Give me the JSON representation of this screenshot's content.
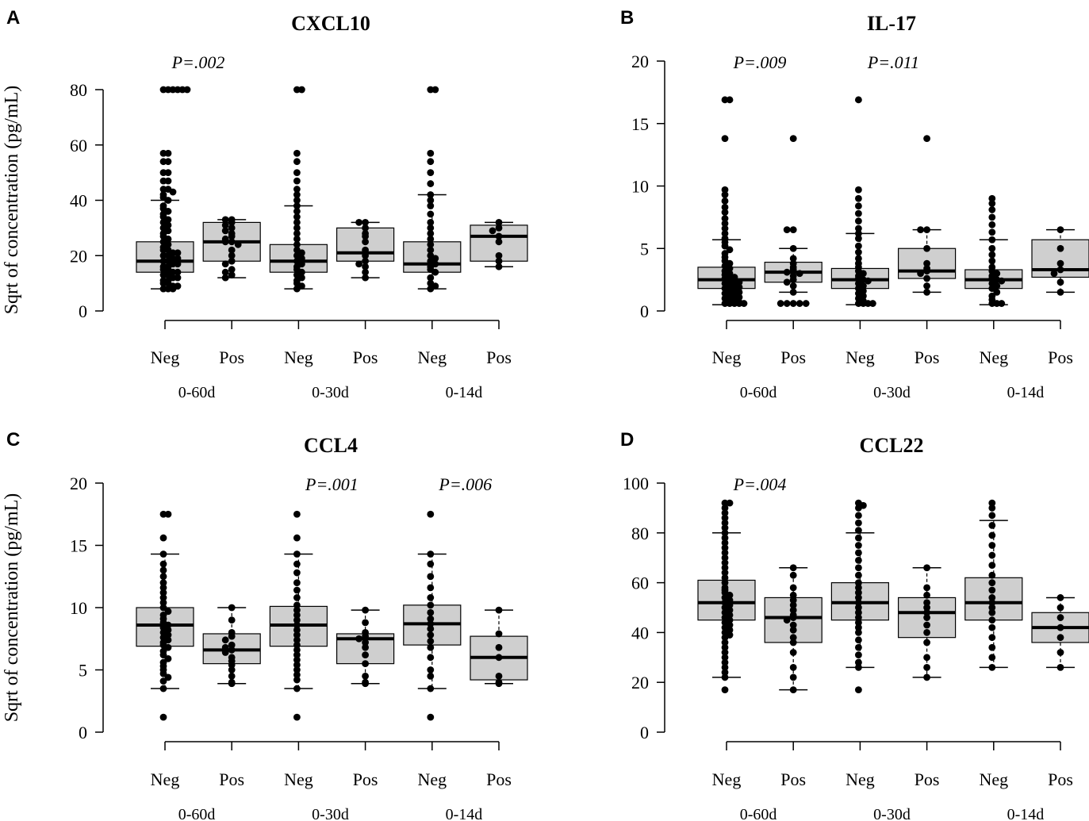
{
  "y_axis_label": "Sqrt of concentration (pg/mL)",
  "colors": {
    "box_fill": "#cfcfcf",
    "ink": "#000000",
    "background": "#ffffff"
  },
  "chart_data": [
    {
      "panel": "A",
      "type": "box",
      "title": "CXCL10",
      "ylabel": "Sqrt of concentration (pg/mL)",
      "ylim": [
        0,
        80
      ],
      "yticks": [
        0,
        20,
        40,
        60,
        80
      ],
      "group_labels": [
        "0-60d",
        "0-30d",
        "0-14d"
      ],
      "categories": [
        "Neg",
        "Pos",
        "Neg",
        "Pos",
        "Neg",
        "Pos"
      ],
      "pvalues": [
        {
          "label": "P=.002",
          "group": 0
        }
      ],
      "boxes": [
        {
          "group": "0-60d",
          "status": "Neg",
          "whisker_low": 8,
          "q1": 14,
          "median": 18,
          "q3": 25,
          "whisker_high": 40,
          "points": [
            80,
            80,
            80,
            80,
            80,
            80,
            57,
            57,
            54,
            54,
            50,
            50,
            47,
            47,
            44,
            44,
            43,
            42,
            41,
            40,
            38,
            37,
            36,
            35,
            34,
            33,
            32,
            31,
            30,
            29,
            28,
            27,
            26,
            25,
            24,
            23,
            22,
            22,
            21,
            21,
            20,
            20,
            19,
            19,
            18,
            18,
            17,
            17,
            16,
            16,
            15,
            15,
            14,
            14,
            13,
            13,
            12,
            12,
            11,
            11,
            10,
            10,
            9,
            9,
            8,
            8,
            8
          ]
        },
        {
          "group": "0-60d",
          "status": "Pos",
          "whisker_low": 12,
          "q1": 18,
          "median": 25,
          "q3": 32,
          "whisker_high": 33,
          "points": [
            33,
            33,
            32,
            31,
            30,
            29,
            28,
            27,
            26,
            25,
            25,
            24,
            22,
            20,
            18,
            17,
            15,
            14,
            13,
            12
          ]
        },
        {
          "group": "0-30d",
          "status": "Neg",
          "whisker_low": 8,
          "q1": 14,
          "median": 18,
          "q3": 24,
          "whisker_high": 38,
          "points": [
            80,
            80,
            57,
            54,
            50,
            47,
            44,
            42,
            40,
            38,
            36,
            34,
            32,
            30,
            28,
            26,
            24,
            22,
            21,
            20,
            19,
            18,
            17,
            16,
            15,
            14,
            13,
            12,
            11,
            10,
            9,
            8
          ]
        },
        {
          "group": "0-30d",
          "status": "Pos",
          "whisker_low": 12,
          "q1": 18,
          "median": 21,
          "q3": 30,
          "whisker_high": 32,
          "points": [
            32,
            32,
            30,
            28,
            27,
            25,
            22,
            20,
            18,
            17,
            16,
            14,
            12
          ]
        },
        {
          "group": "0-14d",
          "status": "Neg",
          "whisker_low": 8,
          "q1": 14,
          "median": 17,
          "q3": 25,
          "whisker_high": 42,
          "points": [
            80,
            80,
            57,
            54,
            50,
            46,
            42,
            40,
            38,
            35,
            32,
            30,
            28,
            26,
            24,
            22,
            20,
            19,
            18,
            17,
            16,
            15,
            14,
            12,
            10,
            9,
            8
          ]
        },
        {
          "group": "0-14d",
          "status": "Pos",
          "whisker_low": 16,
          "q1": 18,
          "median": 27,
          "q3": 31,
          "whisker_high": 32,
          "points": [
            32,
            30,
            29,
            27,
            25,
            20,
            18,
            16
          ]
        }
      ]
    },
    {
      "panel": "B",
      "type": "box",
      "title": "IL-17",
      "ylabel": "",
      "ylim": [
        0,
        20
      ],
      "yticks": [
        0,
        5,
        10,
        15,
        20
      ],
      "group_labels": [
        "0-60d",
        "0-30d",
        "0-14d"
      ],
      "categories": [
        "Neg",
        "Pos",
        "Neg",
        "Pos",
        "Neg",
        "Pos"
      ],
      "pvalues": [
        {
          "label": "P=.009",
          "group": 0
        },
        {
          "label": "P=.011",
          "group": 1
        }
      ],
      "boxes": [
        {
          "group": "0-60d",
          "status": "Neg",
          "whisker_low": 0.5,
          "q1": 1.8,
          "median": 2.5,
          "q3": 3.5,
          "whisker_high": 5.7,
          "points": [
            16.9,
            16.9,
            13.8,
            9.7,
            9.3,
            8.8,
            8.3,
            7.9,
            7.4,
            7.0,
            6.6,
            6.2,
            5.8,
            5.5,
            5.2,
            4.9,
            4.6,
            4.3,
            4.0,
            3.8,
            3.6,
            3.4,
            3.2,
            3.0,
            2.9,
            2.8,
            2.7,
            2.6,
            2.5,
            2.4,
            2.3,
            2.2,
            2.1,
            2.0,
            1.9,
            1.8,
            1.7,
            1.6,
            1.5,
            1.4,
            1.3,
            1.2,
            1.1,
            1.0,
            0.9,
            0.8,
            0.7,
            0.6,
            0.6,
            0.6,
            0.6,
            0.6
          ]
        },
        {
          "group": "0-60d",
          "status": "Pos",
          "whisker_low": 1.5,
          "q1": 2.3,
          "median": 3.1,
          "q3": 3.9,
          "whisker_high": 5.0,
          "points": [
            13.8,
            6.5,
            6.5,
            5.0,
            4.2,
            3.8,
            3.5,
            3.3,
            3.1,
            3.0,
            2.8,
            2.5,
            2.3,
            2.0,
            1.5,
            0.6,
            0.6,
            0.6,
            0.6,
            0.6
          ]
        },
        {
          "group": "0-30d",
          "status": "Neg",
          "whisker_low": 0.5,
          "q1": 1.8,
          "median": 2.5,
          "q3": 3.4,
          "whisker_high": 6.2,
          "points": [
            16.9,
            9.7,
            9.0,
            8.4,
            7.8,
            7.2,
            6.6,
            6.2,
            5.8,
            5.2,
            4.7,
            4.2,
            3.8,
            3.5,
            3.2,
            3.0,
            2.8,
            2.6,
            2.5,
            2.4,
            2.2,
            2.0,
            1.8,
            1.6,
            1.4,
            1.2,
            1.0,
            0.8,
            0.6,
            0.6,
            0.6,
            0.6
          ]
        },
        {
          "group": "0-30d",
          "status": "Pos",
          "whisker_low": 1.5,
          "q1": 2.6,
          "median": 3.2,
          "q3": 5.0,
          "whisker_high": 6.5,
          "points": [
            13.8,
            6.5,
            6.5,
            5.0,
            3.8,
            3.4,
            3.2,
            3.0,
            2.6,
            2.0,
            1.5
          ]
        },
        {
          "group": "0-14d",
          "status": "Neg",
          "whisker_low": 0.5,
          "q1": 1.8,
          "median": 2.5,
          "q3": 3.3,
          "whisker_high": 5.7,
          "points": [
            9.0,
            8.6,
            8.1,
            7.5,
            6.9,
            6.3,
            5.7,
            5.0,
            4.5,
            4.0,
            3.5,
            3.2,
            3.0,
            2.8,
            2.6,
            2.5,
            2.4,
            2.2,
            2.0,
            1.8,
            1.5,
            1.2,
            0.9,
            0.6,
            0.6,
            0.6
          ]
        },
        {
          "group": "0-14d",
          "status": "Pos",
          "whisker_low": 1.5,
          "q1": 2.7,
          "median": 3.3,
          "q3": 5.7,
          "whisker_high": 6.5,
          "points": [
            6.5,
            5.0,
            3.8,
            3.3,
            3.0,
            2.3,
            1.5
          ]
        }
      ]
    },
    {
      "panel": "C",
      "type": "box",
      "title": "CCL4",
      "ylabel": "Sqrt of concentration (pg/mL)",
      "ylim": [
        0,
        20
      ],
      "yticks": [
        0,
        5,
        10,
        15,
        20
      ],
      "group_labels": [
        "0-60d",
        "0-30d",
        "0-14d"
      ],
      "categories": [
        "Neg",
        "Pos",
        "Neg",
        "Pos",
        "Neg",
        "Pos"
      ],
      "pvalues": [
        {
          "label": "P=.001",
          "group": 1
        },
        {
          "label": "P=.006",
          "group": 2
        }
      ],
      "boxes": [
        {
          "group": "0-60d",
          "status": "Neg",
          "whisker_low": 3.5,
          "q1": 6.9,
          "median": 8.6,
          "q3": 10.0,
          "whisker_high": 14.3,
          "points": [
            17.5,
            17.5,
            15.6,
            14.3,
            13.5,
            13.0,
            12.5,
            12.0,
            11.6,
            11.2,
            10.8,
            10.4,
            10.0,
            9.7,
            9.4,
            9.1,
            8.8,
            8.6,
            8.4,
            8.2,
            8.0,
            7.8,
            7.6,
            7.4,
            7.2,
            7.0,
            6.8,
            6.5,
            6.2,
            5.9,
            5.6,
            5.3,
            5.0,
            4.7,
            4.4,
            4.1,
            3.5,
            1.2
          ]
        },
        {
          "group": "0-60d",
          "status": "Pos",
          "whisker_low": 3.9,
          "q1": 5.5,
          "median": 6.6,
          "q3": 7.9,
          "whisker_high": 10.0,
          "points": [
            10.0,
            9.0,
            8.0,
            7.7,
            7.4,
            7.0,
            6.8,
            6.6,
            6.4,
            6.0,
            5.7,
            5.4,
            5.0,
            4.5,
            4.0,
            3.9
          ]
        },
        {
          "group": "0-30d",
          "status": "Neg",
          "whisker_low": 3.5,
          "q1": 6.9,
          "median": 8.6,
          "q3": 10.1,
          "whisker_high": 14.3,
          "points": [
            17.5,
            15.6,
            14.3,
            13.5,
            12.8,
            12.0,
            11.4,
            10.8,
            10.2,
            9.8,
            9.4,
            9.0,
            8.6,
            8.2,
            7.8,
            7.4,
            7.0,
            6.6,
            6.2,
            5.8,
            5.4,
            5.0,
            4.6,
            4.2,
            3.5,
            1.2
          ]
        },
        {
          "group": "0-30d",
          "status": "Pos",
          "whisker_low": 3.9,
          "q1": 5.5,
          "median": 7.5,
          "q3": 7.9,
          "whisker_high": 9.8,
          "points": [
            9.8,
            8.8,
            8.0,
            7.7,
            7.5,
            7.2,
            6.8,
            6.2,
            5.5,
            4.5,
            4.0,
            3.9
          ]
        },
        {
          "group": "0-14d",
          "status": "Neg",
          "whisker_low": 3.5,
          "q1": 7.0,
          "median": 8.7,
          "q3": 10.2,
          "whisker_high": 14.3,
          "points": [
            17.5,
            14.3,
            13.5,
            12.5,
            11.6,
            10.8,
            10.2,
            9.6,
            9.1,
            8.7,
            8.3,
            7.8,
            7.3,
            6.8,
            6.0,
            5.0,
            4.5,
            3.5,
            1.2
          ]
        },
        {
          "group": "0-14d",
          "status": "Pos",
          "whisker_low": 3.9,
          "q1": 4.2,
          "median": 6.0,
          "q3": 7.7,
          "whisker_high": 9.8,
          "points": [
            9.8,
            7.9,
            6.8,
            6.0,
            4.5,
            4.0,
            3.9
          ]
        }
      ]
    },
    {
      "panel": "D",
      "type": "box",
      "title": "CCL22",
      "ylabel": "",
      "ylim": [
        0,
        100
      ],
      "yticks": [
        0,
        20,
        40,
        60,
        80,
        100
      ],
      "group_labels": [
        "0-60d",
        "0-30d",
        "0-14d"
      ],
      "categories": [
        "Neg",
        "Pos",
        "Neg",
        "Pos",
        "Neg",
        "Pos"
      ],
      "pvalues": [
        {
          "label": "P=.004",
          "group": 0
        }
      ],
      "boxes": [
        {
          "group": "0-60d",
          "status": "Neg",
          "whisker_low": 22,
          "q1": 45,
          "median": 52,
          "q3": 61,
          "whisker_high": 80,
          "points": [
            92,
            92,
            90,
            88,
            86,
            84,
            82,
            80,
            78,
            76,
            74,
            72,
            70,
            68,
            66,
            64,
            62,
            60,
            58,
            57,
            56,
            55,
            54,
            53,
            52,
            51,
            50,
            49,
            48,
            47,
            46,
            45,
            44,
            43,
            42,
            41,
            40,
            39,
            38,
            36,
            34,
            32,
            30,
            28,
            26,
            24,
            22,
            17
          ]
        },
        {
          "group": "0-60d",
          "status": "Pos",
          "whisker_low": 17,
          "q1": 36,
          "median": 46,
          "q3": 54,
          "whisker_high": 66,
          "points": [
            66,
            63,
            58,
            55,
            53,
            51,
            49,
            47,
            46,
            45,
            43,
            41,
            38,
            36,
            32,
            26,
            22,
            17
          ]
        },
        {
          "group": "0-30d",
          "status": "Neg",
          "whisker_low": 26,
          "q1": 45,
          "median": 52,
          "q3": 60,
          "whisker_high": 80,
          "points": [
            92,
            91,
            90,
            87,
            84,
            81,
            78,
            75,
            72,
            69,
            66,
            63,
            60,
            58,
            56,
            54,
            52,
            50,
            48,
            46,
            44,
            42,
            40,
            37,
            34,
            31,
            28,
            26,
            17
          ]
        },
        {
          "group": "0-30d",
          "status": "Pos",
          "whisker_low": 22,
          "q1": 38,
          "median": 48,
          "q3": 54,
          "whisker_high": 66,
          "points": [
            66,
            58,
            55,
            52,
            50,
            48,
            46,
            43,
            40,
            36,
            30,
            26,
            22
          ]
        },
        {
          "group": "0-14d",
          "status": "Neg",
          "whisker_low": 26,
          "q1": 45,
          "median": 52,
          "q3": 62,
          "whisker_high": 85,
          "points": [
            92,
            90,
            87,
            83,
            79,
            75,
            71,
            67,
            63,
            60,
            57,
            54,
            52,
            50,
            48,
            45,
            42,
            38,
            34,
            30,
            26
          ]
        },
        {
          "group": "0-14d",
          "status": "Pos",
          "whisker_low": 26,
          "q1": 36,
          "median": 42,
          "q3": 48,
          "whisker_high": 54,
          "points": [
            54,
            50,
            46,
            42,
            38,
            32,
            26
          ]
        }
      ]
    }
  ]
}
